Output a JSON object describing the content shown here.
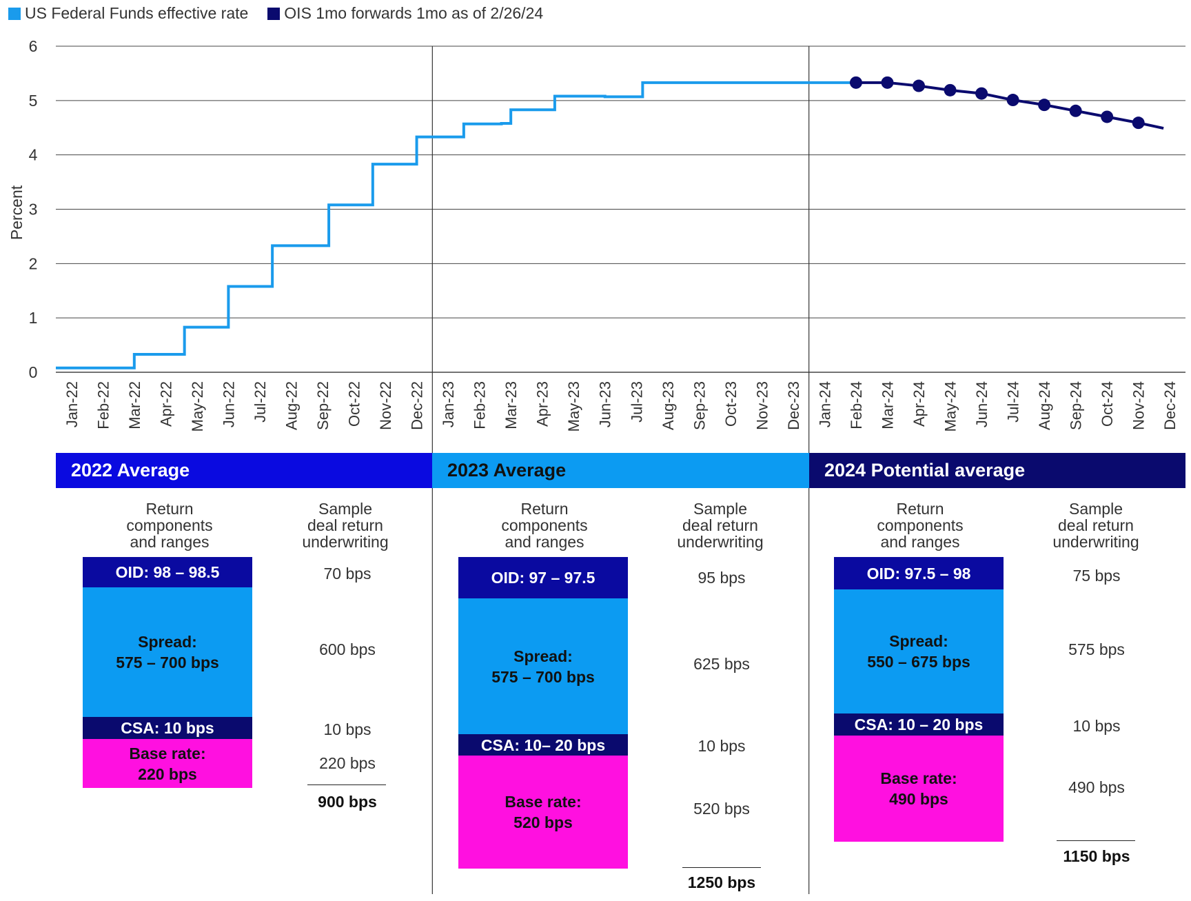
{
  "legend": [
    {
      "label": "US Federal Funds effective rate",
      "color": "#1a9bec"
    },
    {
      "label": "OIS 1mo forwards 1mo as of 2/26/24",
      "color": "#0a0a6e"
    }
  ],
  "chart_data": {
    "type": "line",
    "ylabel": "Percent",
    "ylim": [
      0,
      6
    ],
    "yticks": [
      "0",
      "1",
      "2",
      "3",
      "4",
      "5",
      "6"
    ],
    "grid": true,
    "categories": [
      "Jan-22",
      "Feb-22",
      "Mar-22",
      "Apr-22",
      "May-22",
      "Jun-22",
      "Jul-22",
      "Aug-22",
      "Sep-22",
      "Oct-22",
      "Nov-22",
      "Dec-22",
      "Jan-23",
      "Feb-23",
      "Mar-23",
      "Apr-23",
      "May-23",
      "Jun-23",
      "Jul-23",
      "Aug-23",
      "Sep-23",
      "Oct-23",
      "Nov-23",
      "Dec-23",
      "Jan-24",
      "Feb-24",
      "Mar-24",
      "Apr-24",
      "May-24",
      "Jun-24",
      "Jul-24",
      "Aug-24",
      "Sep-24",
      "Oct-24",
      "Nov-24",
      "Dec-24"
    ],
    "series": [
      {
        "name": "US Federal Funds effective rate",
        "color": "#1a9bec",
        "style": "step",
        "steps": [
          {
            "x": 0,
            "y": 0.08
          },
          {
            "x": 2.5,
            "y": 0.33
          },
          {
            "x": 4.1,
            "y": 0.83
          },
          {
            "x": 5.5,
            "y": 1.58
          },
          {
            "x": 6.9,
            "y": 2.33
          },
          {
            "x": 8.7,
            "y": 3.08
          },
          {
            "x": 10.1,
            "y": 3.83
          },
          {
            "x": 11.5,
            "y": 4.33
          },
          {
            "x": 13.0,
            "y": 4.57
          },
          {
            "x": 14.2,
            "y": 4.58
          },
          {
            "x": 14.5,
            "y": 4.83
          },
          {
            "x": 15.9,
            "y": 5.08
          },
          {
            "x": 17.5,
            "y": 5.07
          },
          {
            "x": 18.7,
            "y": 5.33
          },
          {
            "x": 25.5,
            "y": 5.33
          }
        ]
      },
      {
        "name": "OIS 1mo forwards 1mo as of 2/26/24",
        "color": "#0a0a6e",
        "style": "line-markers",
        "points": [
          {
            "x": 25.5,
            "y": 5.33
          },
          {
            "x": 26.5,
            "y": 5.33
          },
          {
            "x": 27.5,
            "y": 5.27
          },
          {
            "x": 28.5,
            "y": 5.19
          },
          {
            "x": 29.5,
            "y": 5.13
          },
          {
            "x": 30.5,
            "y": 5.01
          },
          {
            "x": 31.5,
            "y": 4.92
          },
          {
            "x": 32.5,
            "y": 4.81
          },
          {
            "x": 33.5,
            "y": 4.7
          },
          {
            "x": 34.5,
            "y": 4.59
          },
          {
            "x": 35.3,
            "y": 4.49
          }
        ],
        "marker_count": 10
      }
    ]
  },
  "panels": [
    {
      "title": "2022 Average",
      "band_color": "#0a0ae0",
      "left_head": "Return\ncomponents\nand ranges",
      "right_head": "Sample\ndeal return\nunderwriting",
      "segments": {
        "oid": "OID: 98 – 98.5",
        "spread": "Spread:\n575 – 700 bps",
        "csa": "CSA: 10 bps",
        "base": "Base rate:\n220 bps"
      },
      "values": {
        "oid": "70 bps",
        "spread": "600 bps",
        "csa": "10 bps",
        "base": "220 bps"
      },
      "total": "900 bps"
    },
    {
      "title": "2023 Average",
      "band_color": "#0c9bf2",
      "left_head": "Return\ncomponents\nand ranges",
      "right_head": "Sample\ndeal return\nunderwriting",
      "segments": {
        "oid": "OID: 97 – 97.5",
        "spread": "Spread:\n575 – 700 bps",
        "csa": "CSA: 10– 20 bps",
        "base": "Base rate:\n520 bps"
      },
      "values": {
        "oid": "95 bps",
        "spread": "625 bps",
        "csa": "10 bps",
        "base": "520 bps"
      },
      "total": "1250 bps"
    },
    {
      "title": "2024 Potential average",
      "band_color": "#0a0a6e",
      "left_head": "Return\ncomponents\nand ranges",
      "right_head": "Sample\ndeal return\nunderwriting",
      "segments": {
        "oid": "OID: 97.5 – 98",
        "spread": "Spread:\n550 – 675 bps",
        "csa": "CSA: 10 – 20 bps",
        "base": "Base rate:\n490 bps"
      },
      "values": {
        "oid": "75 bps",
        "spread": "575 bps",
        "csa": "10 bps",
        "base": "490 bps"
      },
      "total": "1150 bps"
    }
  ]
}
